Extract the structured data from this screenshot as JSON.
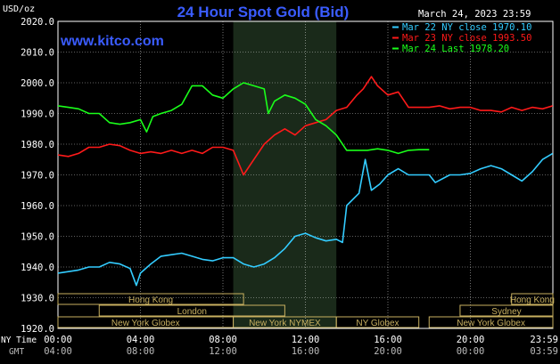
{
  "header": {
    "title": "24 Hour Spot Gold (Bid)",
    "website": "www.kitco.com",
    "timestamp": "March 24, 2023 23:59",
    "unit": "USD/oz"
  },
  "legend": [
    {
      "label": "Mar 22 NY close 1970.10",
      "color": "#33ccff"
    },
    {
      "label": "Mar 23 NY close 1993.50",
      "color": "#ff1a1a"
    },
    {
      "label": "Mar 24 Last 1978.20",
      "color": "#1aff1a"
    }
  ],
  "colors": {
    "background": "#000000",
    "grid": "#ffffff",
    "axis_text": "#ffffff",
    "title": "#3a5cff",
    "session_box": "#c8b060",
    "highlight": "#1a2a1a",
    "timezone_text": "#bbbbbb"
  },
  "sessions": [
    {
      "label": "Hong Kong",
      "start_h": 0.0,
      "end_h": 9.0,
      "row": 0
    },
    {
      "label": "Hong Kong",
      "start_h": 22.0,
      "end_h": 24.0,
      "row": 0
    },
    {
      "label": "London",
      "start_h": 2.0,
      "end_h": 11.0,
      "row": 1
    },
    {
      "label": "Sydney",
      "start_h": 19.5,
      "end_h": 24.0,
      "row": 1
    },
    {
      "label": "New York Globex",
      "start_h": 0.0,
      "end_h": 8.5,
      "row": 2
    },
    {
      "label": "New York NYMEX",
      "start_h": 8.5,
      "end_h": 13.5,
      "row": 2
    },
    {
      "label": "NY Globex",
      "start_h": 13.5,
      "end_h": 17.5,
      "row": 2
    },
    {
      "label": "New York Globex",
      "start_h": 18.0,
      "end_h": 24.0,
      "row": 2
    }
  ],
  "time_axis": {
    "ny_label": "NY Time",
    "gmt_label": "GMT",
    "ny_ticks": [
      "00:00",
      "04:00",
      "08:00",
      "12:00",
      "16:00",
      "20:00",
      "23:59"
    ],
    "gmt_ticks": [
      "04:00",
      "08:00",
      "12:00",
      "16:00",
      "20:00",
      "00:00",
      "03:59"
    ]
  },
  "chart_data": {
    "type": "line",
    "title": "24 Hour Spot Gold (Bid)",
    "ylabel": "USD/oz",
    "xlabel": "NY Time",
    "ylim": [
      1920,
      2020
    ],
    "y_ticks": [
      1920,
      1930,
      1940,
      1950,
      1960,
      1970,
      1980,
      1990,
      2000,
      2010,
      2020
    ],
    "y_tick_labels": [
      "1920.0",
      "1930.0",
      "1940.0",
      "1950.0",
      "1960.0",
      "1970.0",
      "1980.0",
      "1990.0",
      "2000.0",
      "2010.0",
      "2020.0"
    ],
    "xlim_hours": [
      0,
      24
    ],
    "highlight_hours": [
      8.5,
      13.5
    ],
    "grid": true,
    "legend_position": "top-right",
    "series": [
      {
        "name": "Mar 22 NY close 1970.10",
        "color": "#33ccff",
        "points": [
          [
            0,
            1938
          ],
          [
            0.5,
            1938.5
          ],
          [
            1,
            1939
          ],
          [
            1.5,
            1940
          ],
          [
            2,
            1940
          ],
          [
            2.5,
            1941.5
          ],
          [
            3,
            1941
          ],
          [
            3.5,
            1939.5
          ],
          [
            3.8,
            1934
          ],
          [
            4,
            1938
          ],
          [
            4.5,
            1941
          ],
          [
            5,
            1943.5
          ],
          [
            5.5,
            1944
          ],
          [
            6,
            1944.5
          ],
          [
            6.5,
            1943.5
          ],
          [
            7,
            1942.5
          ],
          [
            7.5,
            1942
          ],
          [
            8,
            1943
          ],
          [
            8.5,
            1943
          ],
          [
            9,
            1941
          ],
          [
            9.5,
            1940
          ],
          [
            10,
            1941
          ],
          [
            10.5,
            1943
          ],
          [
            11,
            1946
          ],
          [
            11.5,
            1950
          ],
          [
            12,
            1951
          ],
          [
            12.5,
            1949.5
          ],
          [
            13,
            1948.5
          ],
          [
            13.5,
            1949
          ],
          [
            13.8,
            1948
          ],
          [
            14,
            1960
          ],
          [
            14.3,
            1962
          ],
          [
            14.6,
            1964
          ],
          [
            14.9,
            1975
          ],
          [
            15.2,
            1965
          ],
          [
            15.6,
            1967
          ],
          [
            16,
            1970
          ],
          [
            16.5,
            1972
          ],
          [
            17,
            1970
          ],
          [
            17.5,
            1970
          ],
          [
            18,
            1970
          ],
          [
            18.3,
            1967.5
          ],
          [
            19,
            1970
          ],
          [
            19.5,
            1970
          ],
          [
            20,
            1970.5
          ],
          [
            20.5,
            1972
          ],
          [
            21,
            1973
          ],
          [
            21.5,
            1972
          ],
          [
            22,
            1970
          ],
          [
            22.5,
            1968
          ],
          [
            23,
            1971
          ],
          [
            23.5,
            1975
          ],
          [
            23.99,
            1977
          ]
        ]
      },
      {
        "name": "Mar 23 NY close 1993.50",
        "color": "#ff1a1a",
        "points": [
          [
            0,
            1976.5
          ],
          [
            0.5,
            1976
          ],
          [
            1,
            1977
          ],
          [
            1.5,
            1979
          ],
          [
            2,
            1979
          ],
          [
            2.5,
            1980
          ],
          [
            3,
            1979.5
          ],
          [
            3.5,
            1978
          ],
          [
            4,
            1977
          ],
          [
            4.5,
            1977.5
          ],
          [
            5,
            1977
          ],
          [
            5.5,
            1978
          ],
          [
            6,
            1977
          ],
          [
            6.5,
            1978
          ],
          [
            7,
            1977
          ],
          [
            7.5,
            1979
          ],
          [
            8,
            1979
          ],
          [
            8.5,
            1978
          ],
          [
            9,
            1970
          ],
          [
            9.5,
            1975
          ],
          [
            10,
            1980
          ],
          [
            10.5,
            1983
          ],
          [
            11,
            1985
          ],
          [
            11.5,
            1983
          ],
          [
            12,
            1986
          ],
          [
            12.5,
            1987
          ],
          [
            13,
            1988
          ],
          [
            13.5,
            1991
          ],
          [
            14,
            1992
          ],
          [
            14.5,
            1996
          ],
          [
            14.8,
            1998
          ],
          [
            15.2,
            2002
          ],
          [
            15.5,
            1999
          ],
          [
            16,
            1996
          ],
          [
            16.5,
            1997
          ],
          [
            17,
            1992
          ],
          [
            17.5,
            1992
          ],
          [
            18,
            1992
          ],
          [
            18.5,
            1992.5
          ],
          [
            19,
            1991.5
          ],
          [
            19.5,
            1992
          ],
          [
            20,
            1992
          ],
          [
            20.5,
            1991
          ],
          [
            21,
            1991
          ],
          [
            21.5,
            1990.5
          ],
          [
            22,
            1992
          ],
          [
            22.5,
            1991
          ],
          [
            23,
            1992
          ],
          [
            23.5,
            1991.5
          ],
          [
            23.99,
            1992.5
          ]
        ]
      },
      {
        "name": "Mar 24 Last 1978.20",
        "color": "#1aff1a",
        "points": [
          [
            0,
            1992.5
          ],
          [
            0.5,
            1992
          ],
          [
            1,
            1991.5
          ],
          [
            1.5,
            1990
          ],
          [
            2,
            1990
          ],
          [
            2.5,
            1987
          ],
          [
            3,
            1986.5
          ],
          [
            3.5,
            1987
          ],
          [
            4,
            1988
          ],
          [
            4.3,
            1984
          ],
          [
            4.6,
            1989
          ],
          [
            5,
            1990
          ],
          [
            5.5,
            1991
          ],
          [
            6,
            1993
          ],
          [
            6.5,
            1999
          ],
          [
            7,
            1999
          ],
          [
            7.5,
            1996
          ],
          [
            8,
            1995
          ],
          [
            8.5,
            1998
          ],
          [
            9,
            2000
          ],
          [
            9.5,
            1999
          ],
          [
            10,
            1998
          ],
          [
            10.2,
            1990
          ],
          [
            10.5,
            1994
          ],
          [
            11,
            1996
          ],
          [
            11.5,
            1995
          ],
          [
            12,
            1993
          ],
          [
            12.5,
            1988
          ],
          [
            13,
            1986
          ],
          [
            13.5,
            1983
          ],
          [
            14,
            1978
          ],
          [
            14.5,
            1978
          ],
          [
            15,
            1978
          ],
          [
            15.5,
            1978.5
          ],
          [
            16,
            1978
          ],
          [
            16.5,
            1977
          ],
          [
            17,
            1978
          ],
          [
            17.5,
            1978.2
          ],
          [
            18,
            1978.2
          ]
        ]
      }
    ]
  }
}
